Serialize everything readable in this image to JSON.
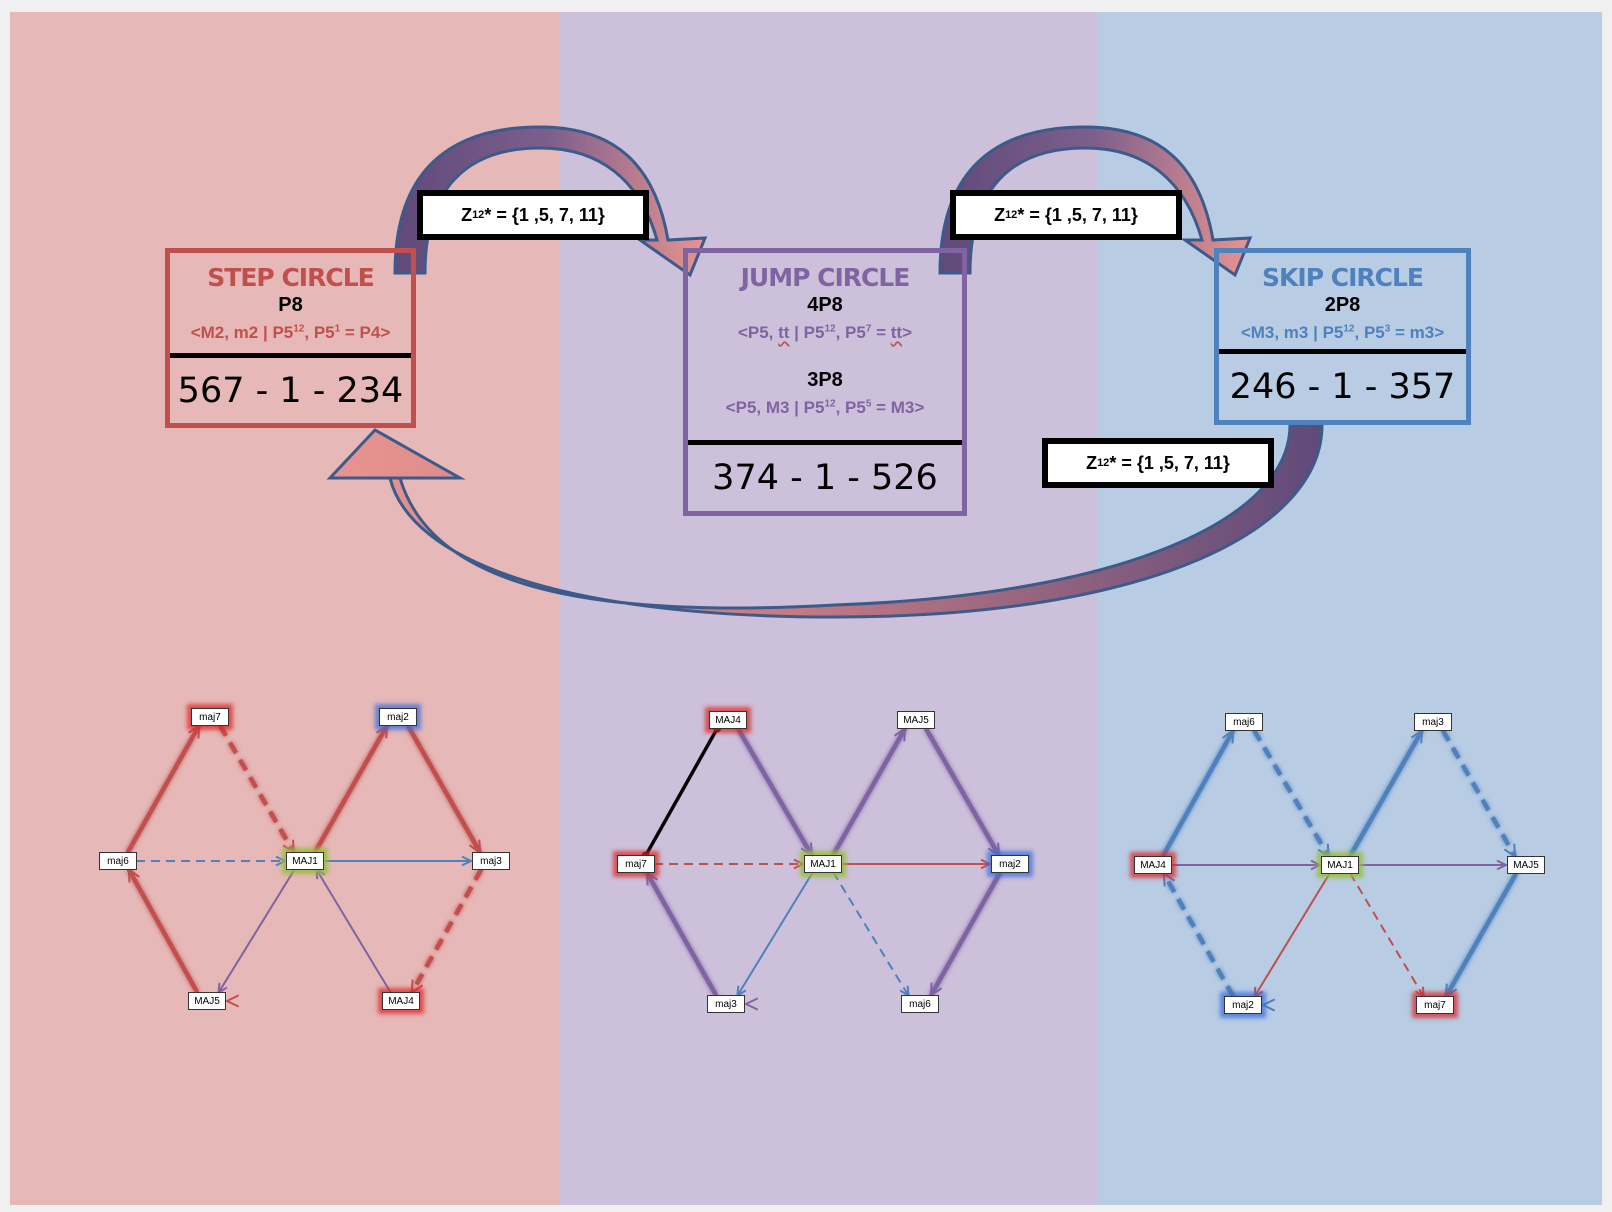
{
  "colors": {
    "red": "#c0504d",
    "purple": "#8064a2",
    "blue": "#4f81bd",
    "bg_red": "#e6b8b7",
    "bg_purple": "#ccc0da",
    "bg_blue": "#b8cce4"
  },
  "z_label": {
    "prefix": "Z",
    "sub": "12",
    "rest": "* = {1 ,5, 7, 11}"
  },
  "step": {
    "title": "STEP CIRCLE",
    "subtitle": "P8",
    "gen_pre": "<M2, m2 | P5",
    "gen_sup1": "12",
    "gen_mid": ", P5",
    "gen_sup2": "1",
    "gen_post": " = P4>",
    "sequence": "567 - 1 - 234"
  },
  "jump": {
    "title": "JUMP CIRCLE",
    "subtitle1": "4P8",
    "gen1_pre": "<P5, ",
    "gen1_tt": "tt",
    "gen1_mid": " | P5",
    "gen1_sup1": "12",
    "gen1_mid2": ", P5",
    "gen1_sup2": "7",
    "gen1_eq": " = ",
    "gen1_tt2": "tt",
    "gen1_end": ">",
    "subtitle2": "3P8",
    "gen2_pre": "<P5, M3 | P5",
    "gen2_sup1": "12",
    "gen2_mid": ", P5",
    "gen2_sup2": "5",
    "gen2_post": " = M3>",
    "sequence": "374 - 1 - 526"
  },
  "skip": {
    "title": "SKIP CIRCLE",
    "subtitle": "2P8",
    "gen_pre": "<M3, m3 | P5",
    "gen_sup1": "12",
    "gen_mid": ", P5",
    "gen_sup2": "3",
    "gen_post": " = m3>",
    "sequence": "246 - 1 - 357"
  },
  "graphs": [
    {
      "name": "step",
      "nodes": {
        "top_left": {
          "label": "maj7",
          "glow": "red"
        },
        "top_right": {
          "label": "maj2",
          "glow": "blue"
        },
        "left": {
          "label": "maj6",
          "glow": "none"
        },
        "center": {
          "label": "MAJ1",
          "glow": "green"
        },
        "right": {
          "label": "maj3",
          "glow": "none"
        },
        "bottom_left": {
          "label": "MAJ5",
          "glow": "none"
        },
        "bottom_right": {
          "label": "MAJ4",
          "glow": "red"
        }
      },
      "edges": [
        {
          "from": "bottom_left",
          "to": "left",
          "color": "red",
          "style": "solid-thick"
        },
        {
          "from": "left",
          "to": "top_left",
          "color": "red",
          "style": "solid-thick"
        },
        {
          "from": "top_left",
          "to": "center",
          "color": "red",
          "style": "dashed-thick"
        },
        {
          "from": "center",
          "to": "top_right",
          "color": "red",
          "style": "solid-thick"
        },
        {
          "from": "top_right",
          "to": "right",
          "color": "red",
          "style": "solid-thick"
        },
        {
          "from": "right",
          "to": "bottom_right",
          "color": "red",
          "style": "dashed-thick"
        },
        {
          "from": "bottom_right",
          "to": "bottom_left",
          "color": "red",
          "style": "solid-thick"
        },
        {
          "from": "left",
          "to": "center",
          "color": "blue",
          "style": "dashed-thin"
        },
        {
          "from": "center",
          "to": "right",
          "color": "blue",
          "style": "solid-thin"
        },
        {
          "from": "center",
          "to": "bottom_left",
          "color": "purple",
          "style": "solid-thin"
        },
        {
          "from": "bottom_right",
          "to": "center",
          "color": "purple",
          "style": "solid-thin"
        }
      ]
    },
    {
      "name": "jump",
      "nodes": {
        "top_left": {
          "label": "MAJ4",
          "glow": "red"
        },
        "top_right": {
          "label": "MAJ5",
          "glow": "none"
        },
        "left": {
          "label": "maj7",
          "glow": "red"
        },
        "center": {
          "label": "MAJ1",
          "glow": "green"
        },
        "right": {
          "label": "maj2",
          "glow": "blue"
        },
        "bottom_left": {
          "label": "maj3",
          "glow": "none"
        },
        "bottom_right": {
          "label": "maj6",
          "glow": "none"
        }
      },
      "edges": [
        {
          "from": "left",
          "to": "top_left",
          "color": "black",
          "style": "solid-black"
        },
        {
          "from": "top_left",
          "to": "center",
          "color": "purple",
          "style": "solid-thick"
        },
        {
          "from": "center",
          "to": "top_right",
          "color": "purple",
          "style": "solid-thick"
        },
        {
          "from": "top_right",
          "to": "right",
          "color": "purple",
          "style": "solid-thick"
        },
        {
          "from": "right",
          "to": "bottom_right",
          "color": "purple",
          "style": "solid-thick"
        },
        {
          "from": "bottom_right",
          "to": "bottom_left",
          "color": "purple",
          "style": "solid-thick"
        },
        {
          "from": "bottom_left",
          "to": "left",
          "color": "purple",
          "style": "solid-thick"
        },
        {
          "from": "left",
          "to": "center",
          "color": "red",
          "style": "dashed-thin"
        },
        {
          "from": "center",
          "to": "right",
          "color": "red",
          "style": "solid-thin"
        },
        {
          "from": "center",
          "to": "bottom_left",
          "color": "blue",
          "style": "solid-thin"
        },
        {
          "from": "center",
          "to": "bottom_right",
          "color": "blue",
          "style": "dashed-thin"
        }
      ]
    },
    {
      "name": "skip",
      "nodes": {
        "top_left": {
          "label": "maj6",
          "glow": "none"
        },
        "top_right": {
          "label": "maj3",
          "glow": "none"
        },
        "left": {
          "label": "MAJ4",
          "glow": "red"
        },
        "center": {
          "label": "MAJ1",
          "glow": "green"
        },
        "right": {
          "label": "MAJ5",
          "glow": "none"
        },
        "bottom_left": {
          "label": "maj2",
          "glow": "blue"
        },
        "bottom_right": {
          "label": "maj7",
          "glow": "red"
        }
      },
      "edges": [
        {
          "from": "left",
          "to": "top_left",
          "color": "blue",
          "style": "solid-thick"
        },
        {
          "from": "top_left",
          "to": "center",
          "color": "blue",
          "style": "dashed-thick"
        },
        {
          "from": "center",
          "to": "top_right",
          "color": "blue",
          "style": "solid-thick"
        },
        {
          "from": "top_right",
          "to": "right",
          "color": "blue",
          "style": "dashed-thick"
        },
        {
          "from": "right",
          "to": "bottom_right",
          "color": "blue",
          "style": "solid-thick"
        },
        {
          "from": "bottom_right",
          "to": "bottom_left",
          "color": "blue",
          "style": "dashed-thick"
        },
        {
          "from": "bottom_left",
          "to": "left",
          "color": "blue",
          "style": "dashed-thick"
        },
        {
          "from": "left",
          "to": "center",
          "color": "purple",
          "style": "solid-thin"
        },
        {
          "from": "center",
          "to": "right",
          "color": "purple",
          "style": "solid-thin"
        },
        {
          "from": "center",
          "to": "bottom_left",
          "color": "red",
          "style": "solid-thin"
        },
        {
          "from": "center",
          "to": "bottom_right",
          "color": "red",
          "style": "dashed-thin"
        }
      ]
    }
  ]
}
